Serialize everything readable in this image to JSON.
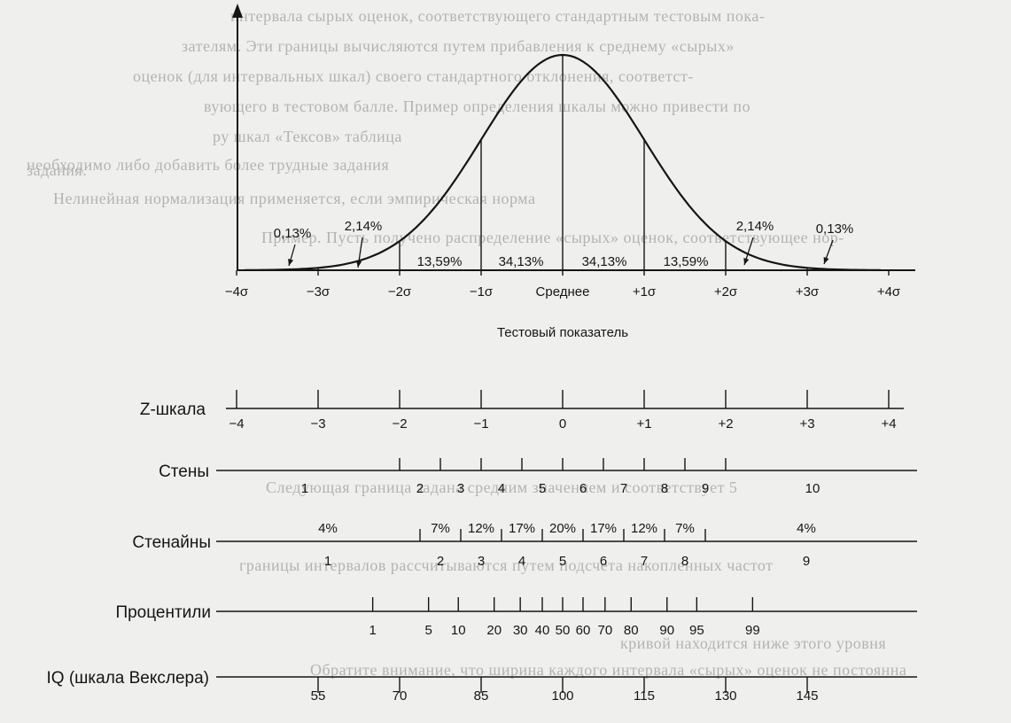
{
  "background_text": [
    "интервала сырых оценок, соответствующего стандартным тестовым пока-",
    "зателям. Эти границы вычисляются путем прибавления к среднему «сырых»",
    "оценок (для интервальных шкал) своего стандартного отклонения, соответст-",
    "вующего в тестовом балле. Пример определения шкалы можно привести по",
    "ру шкал «Тексов» таблица",
    "необходимо либо добавить более трудные задания",
    "задания.",
    "Нелинейная нормализация применяется, если эмпирическая норма",
    "Пример. Пусть получено распределение «сырых» оценок, соответствующее нор-",
    "Следующая граница задана средним значением и соответствует 5",
    "границы интервалов рассчитываются путем подсчета накопленных частот",
    "кривой находится ниже этого уровня",
    "Обратите внимание, что ширина каждого интервала «сырых» оценок не постоянна"
  ],
  "curve_chart": {
    "percents": [
      "0,13%",
      "2,14%",
      "13,59%",
      "34,13%",
      "34,13%",
      "13,59%",
      "2,14%",
      "0,13%"
    ],
    "axis_labels": [
      "−4σ",
      "−3σ",
      "−2σ",
      "−1σ",
      "Среднее",
      "+1σ",
      "+2σ",
      "+3σ",
      "+4σ"
    ],
    "axis_title": "Тестовый показатель"
  },
  "scales": {
    "z": {
      "name": "Z-шкала",
      "labels": [
        "−4",
        "−3",
        "−2",
        "−1",
        "0",
        "+1",
        "+2",
        "+3",
        "+4"
      ]
    },
    "stens": {
      "name": "Стены",
      "labels": [
        "1",
        "2",
        "3",
        "4",
        "5",
        "6",
        "7",
        "8",
        "9",
        "10"
      ]
    },
    "stanines": {
      "name": "Стенайны",
      "percents": [
        "4%",
        "7%",
        "12%",
        "17%",
        "20%",
        "17%",
        "12%",
        "7%",
        "4%"
      ],
      "labels": [
        "1",
        "2",
        "3",
        "4",
        "5",
        "6",
        "7",
        "8",
        "9"
      ]
    },
    "percentiles": {
      "name": "Процентили",
      "labels": [
        "1",
        "5",
        "10",
        "20",
        "30",
        "40",
        "50",
        "60",
        "70",
        "80",
        "90",
        "95",
        "99"
      ]
    },
    "iq": {
      "name": "IQ (шкала Векслера)",
      "labels": [
        "55",
        "70",
        "85",
        "100",
        "115",
        "130",
        "145"
      ]
    }
  }
}
